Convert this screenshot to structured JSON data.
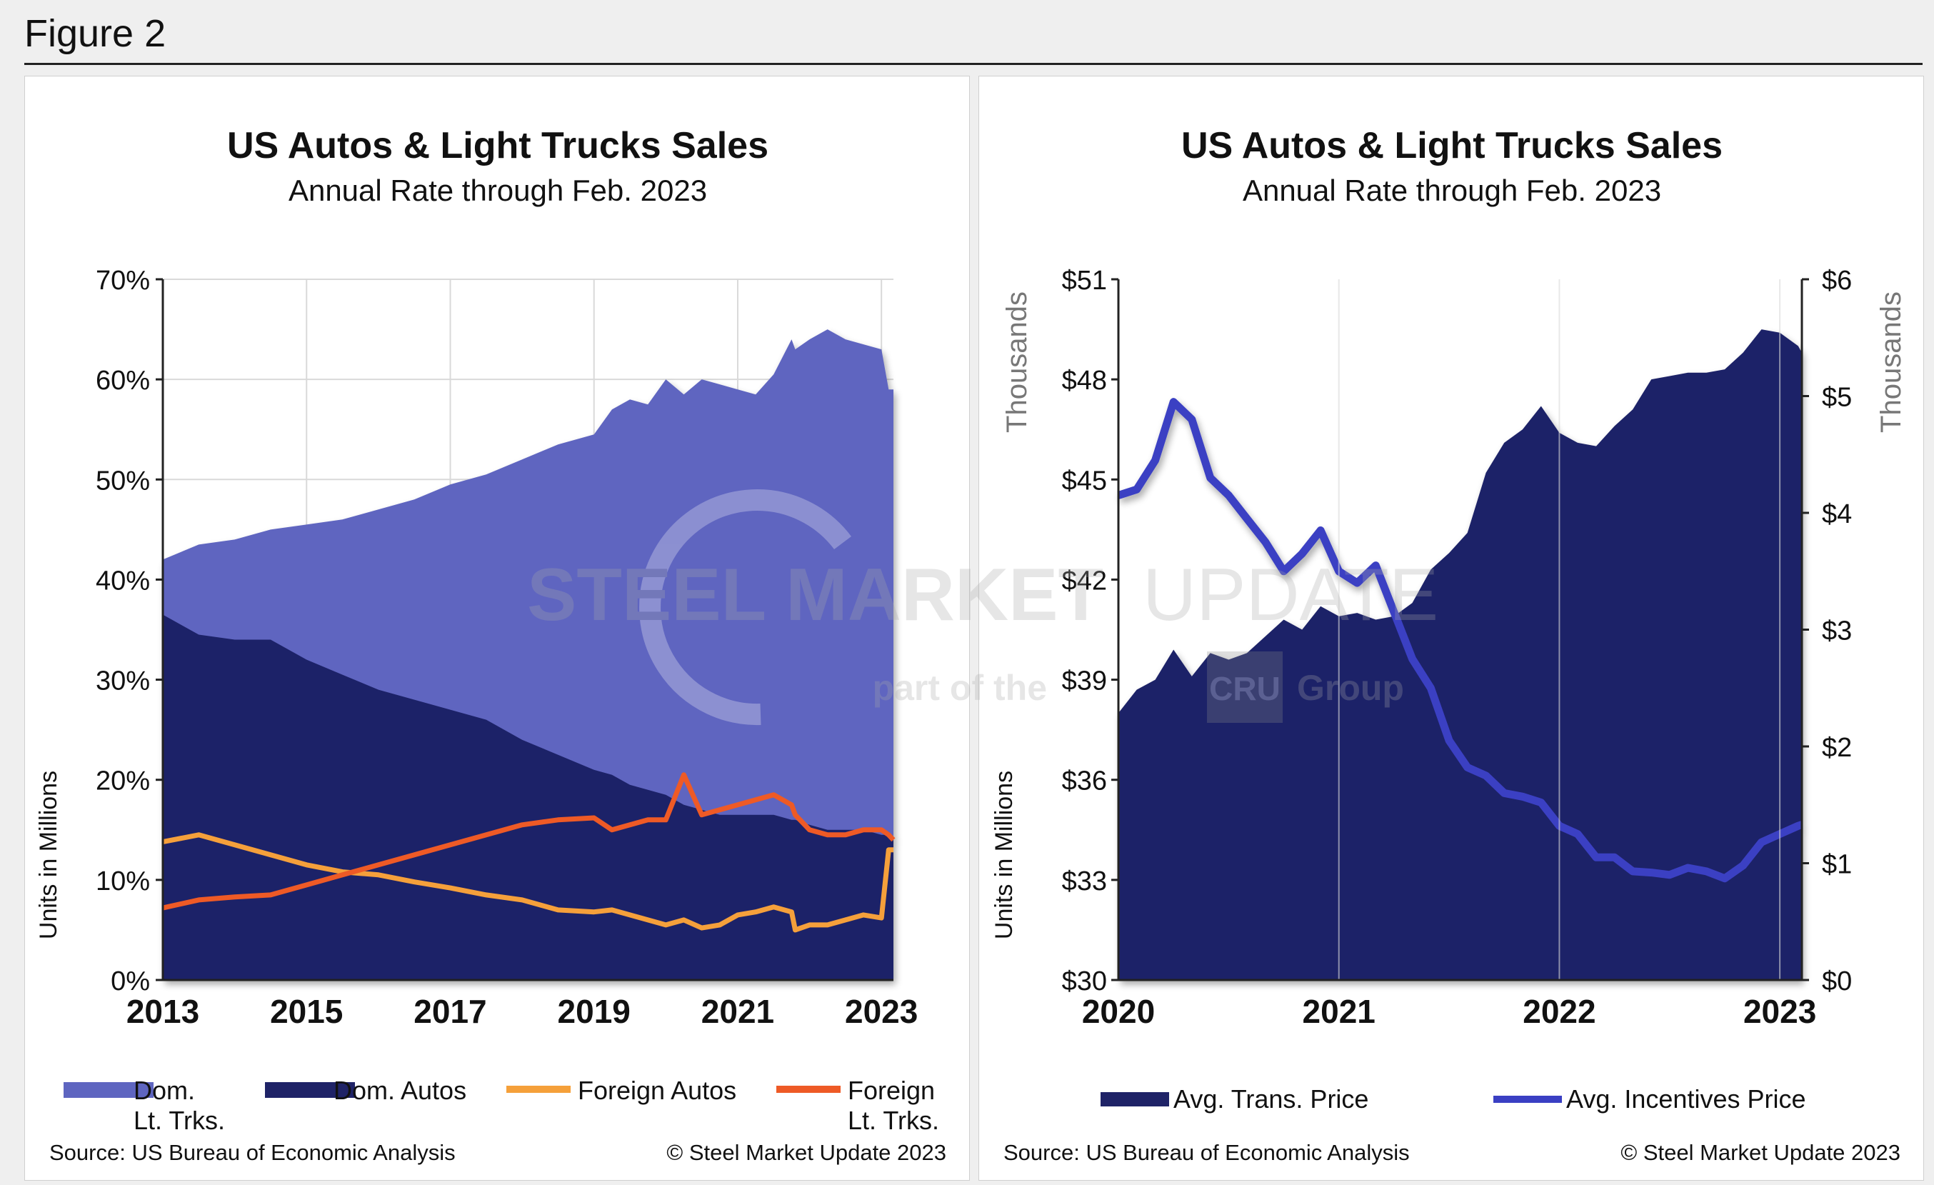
{
  "figure_label": "Figure 2",
  "colors": {
    "dom_lt_trks": "#5e65c0",
    "dom_autos": "#1f2367",
    "foreign_autos": "#f5a03a",
    "foreign_lt_trks": "#ee5a26",
    "avg_trans": "#1f2367",
    "avg_incent": "#3a3fc3"
  },
  "chart_data": [
    {
      "type": "area",
      "title": "US Autos & Light Trucks Sales",
      "subtitle": "Annual Rate through Feb. 2023",
      "ylabel": "Units in Millions",
      "ylim": [
        0,
        70
      ],
      "yticks": [
        "0%",
        "10%",
        "20%",
        "30%",
        "40%",
        "50%",
        "60%",
        "70%"
      ],
      "xticks": [
        "2013",
        "2015",
        "2017",
        "2019",
        "2021",
        "2023"
      ],
      "xlim": [
        2013,
        2023.167
      ],
      "x": [
        2013.0,
        2013.5,
        2014.0,
        2014.5,
        2015.0,
        2015.5,
        2016.0,
        2016.5,
        2017.0,
        2017.5,
        2018.0,
        2018.5,
        2019.0,
        2019.25,
        2019.5,
        2019.75,
        2020.0,
        2020.25,
        2020.5,
        2020.75,
        2021.0,
        2021.25,
        2021.5,
        2021.75,
        2021.8,
        2022.0,
        2022.25,
        2022.5,
        2022.75,
        2023.0,
        2023.1,
        2023.167
      ],
      "series": [
        {
          "name": "Dom.\nLt. Trks.",
          "kind": "area",
          "values": [
            42,
            43.5,
            44,
            45,
            45.5,
            46,
            47,
            48,
            49.5,
            50.5,
            52,
            53.5,
            54.5,
            57,
            58,
            57.5,
            60,
            58.5,
            60,
            59.5,
            59,
            58.5,
            60.5,
            64,
            63,
            64,
            65,
            64,
            63.5,
            63,
            59,
            59
          ]
        },
        {
          "name": "Dom. Autos",
          "kind": "area",
          "values": [
            36.5,
            34.5,
            34,
            34,
            32,
            30.5,
            29,
            28,
            27,
            26,
            24,
            22.5,
            21,
            20.5,
            19.5,
            19,
            18.5,
            17.5,
            17,
            16.5,
            16.5,
            16.5,
            16.5,
            16,
            16,
            15.5,
            15,
            15,
            15,
            14.5,
            14.5,
            14
          ]
        },
        {
          "name": "Foreign Autos",
          "kind": "line",
          "values": [
            13.8,
            14.5,
            13.5,
            12.5,
            11.5,
            10.8,
            10.5,
            9.8,
            9.2,
            8.5,
            8,
            7,
            6.8,
            7,
            6.5,
            6,
            5.5,
            6,
            5.2,
            5.5,
            6.5,
            6.8,
            7.3,
            6.8,
            5,
            5.5,
            5.5,
            6,
            6.5,
            6.2,
            13,
            13
          ]
        },
        {
          "name": "Foreign\nLt. Trks.",
          "kind": "line",
          "values": [
            7.2,
            8,
            8.3,
            8.5,
            9.5,
            10.5,
            11.5,
            12.5,
            13.5,
            14.5,
            15.5,
            16,
            16.2,
            15,
            15.5,
            16,
            16,
            20.5,
            16.5,
            17,
            17.5,
            18,
            18.5,
            17.5,
            16.5,
            15,
            14.5,
            14.5,
            15,
            15,
            14.5,
            14
          ]
        }
      ],
      "source": "Source: US Bureau of Economic Analysis",
      "copyright": "© Steel Market Update 2023"
    },
    {
      "type": "area",
      "title": "US Autos & Light Trucks Sales",
      "subtitle": "Annual Rate through Feb. 2023",
      "ylabel": "Units in Millions",
      "ylabel_left_units": "Thousands",
      "ylabel_right_units": "Thousands",
      "ylim": [
        30,
        51
      ],
      "y2lim": [
        0,
        6
      ],
      "yticks": [
        "$30",
        "$33",
        "$36",
        "$39",
        "$42",
        "$45",
        "$48",
        "$51"
      ],
      "y2ticks": [
        "$0",
        "$1",
        "$2",
        "$3",
        "$4",
        "$5",
        "$6"
      ],
      "xticks": [
        "2020",
        "2021",
        "2022",
        "2023"
      ],
      "xlim": [
        2020,
        2023.1
      ],
      "x": [
        2020.0,
        2020.083,
        2020.167,
        2020.25,
        2020.333,
        2020.417,
        2020.5,
        2020.583,
        2020.667,
        2020.75,
        2020.833,
        2020.917,
        2021.0,
        2021.083,
        2021.167,
        2021.25,
        2021.333,
        2021.417,
        2021.5,
        2021.583,
        2021.667,
        2021.75,
        2021.833,
        2021.917,
        2022.0,
        2022.083,
        2022.167,
        2022.25,
        2022.333,
        2022.417,
        2022.5,
        2022.583,
        2022.667,
        2022.75,
        2022.833,
        2022.917,
        2023.0,
        2023.083,
        2023.1
      ],
      "series": [
        {
          "name": "Avg. Trans. Price",
          "kind": "area",
          "axis": "left",
          "values": [
            38,
            38.7,
            39,
            39.9,
            39.1,
            39.8,
            39.6,
            39.8,
            40.3,
            40.8,
            40.5,
            41.2,
            40.9,
            41.0,
            40.8,
            40.9,
            41.3,
            42.3,
            42.8,
            43.4,
            45.2,
            46.1,
            46.5,
            47.2,
            46.4,
            46.1,
            46.0,
            46.6,
            47.1,
            48.0,
            48.1,
            48.2,
            48.2,
            48.3,
            48.8,
            49.5,
            49.4,
            49.0,
            48.8
          ]
        },
        {
          "name": "Avg. Incentives Price",
          "kind": "line",
          "axis": "right",
          "values": [
            4.15,
            4.2,
            4.45,
            4.95,
            4.8,
            4.3,
            4.15,
            3.95,
            3.75,
            3.5,
            3.65,
            3.85,
            3.5,
            3.4,
            3.55,
            3.15,
            2.75,
            2.5,
            2.05,
            1.82,
            1.75,
            1.6,
            1.57,
            1.52,
            1.32,
            1.25,
            1.05,
            1.05,
            0.93,
            0.92,
            0.9,
            0.96,
            0.93,
            0.87,
            0.98,
            1.18,
            1.25,
            1.32,
            1.33
          ]
        }
      ],
      "source": "Source: US Bureau of Economic Analysis",
      "copyright": "© Steel Market Update 2023"
    }
  ],
  "watermark": {
    "brand_bold": "STEEL MARKET",
    "brand_light": "UPDATE",
    "tagline_prefix": "part of the",
    "tagline_box": "CRU",
    "tagline_suffix": "Group"
  }
}
